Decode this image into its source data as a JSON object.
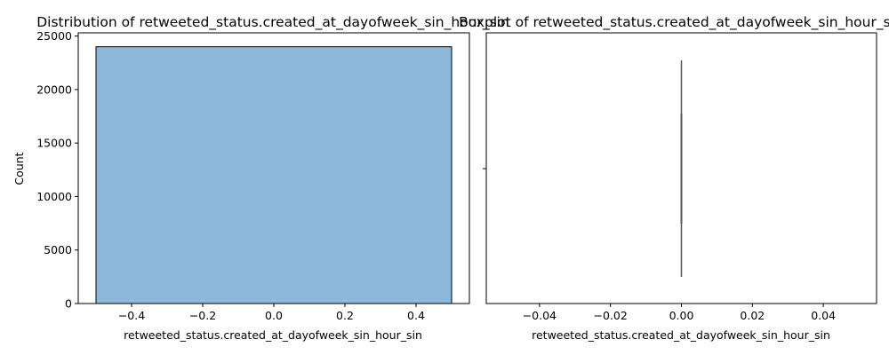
{
  "chart_data": [
    {
      "type": "bar",
      "title": "Distribution of retweeted_status.created_at_dayofweek_sin_hour_sin",
      "xlabel": "retweeted_status.created_at_dayofweek_sin_hour_sin",
      "ylabel": "Count",
      "xlim": [
        -0.55,
        0.55
      ],
      "ylim": [
        0,
        25300
      ],
      "xticks": [
        -0.4,
        -0.2,
        0.0,
        0.2,
        0.4
      ],
      "xtick_labels": [
        "−0.4",
        "−0.2",
        "0.0",
        "0.2",
        "0.4"
      ],
      "yticks": [
        0,
        5000,
        10000,
        15000,
        20000,
        25000
      ],
      "ytick_labels": [
        "0",
        "5000",
        "10000",
        "15000",
        "20000",
        "25000"
      ],
      "bins": [
        {
          "x0": -0.5,
          "x1": 0.5,
          "count": 24000
        }
      ],
      "bar_color": "#8db8da",
      "edge_color": "#000000",
      "grid": false
    },
    {
      "type": "box",
      "title": "Boxplot of retweeted_status.created_at_dayofweek_sin_hour_sin",
      "xlabel": "retweeted_status.created_at_dayofweek_sin_hour_sin",
      "xlim": [
        -0.055,
        0.055
      ],
      "xticks": [
        -0.04,
        -0.02,
        0.0,
        0.02,
        0.04
      ],
      "xtick_labels": [
        "−0.04",
        "−0.02",
        "0.00",
        "0.02",
        "0.04"
      ],
      "stats": {
        "min": 0,
        "q1": 0,
        "median": 0,
        "q3": 0,
        "max": 0
      },
      "line_color": "#555555",
      "grid": false
    }
  ]
}
